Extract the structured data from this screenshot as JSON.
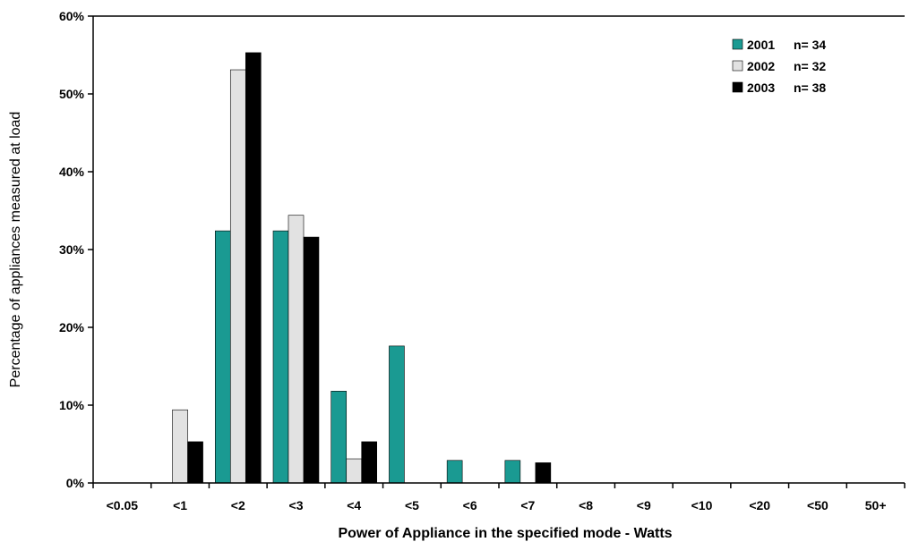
{
  "chart_data": {
    "type": "bar",
    "categories": [
      "<0.05",
      "<1",
      "<2",
      "<3",
      "<4",
      "<5",
      "<6",
      "<7",
      "<8",
      "<9",
      "<10",
      "<20",
      "<50",
      "50+"
    ],
    "series": [
      {
        "name": "2001",
        "n_label": "n= 34",
        "color": "#1a9a92",
        "values": [
          0,
          0,
          32.4,
          32.4,
          11.8,
          17.6,
          2.9,
          2.9,
          0,
          0,
          0,
          0,
          0,
          0
        ]
      },
      {
        "name": "2002",
        "n_label": "n= 32",
        "color": "#e2e2e2",
        "values": [
          0,
          9.4,
          53.1,
          34.4,
          3.1,
          0,
          0,
          0,
          0,
          0,
          0,
          0,
          0,
          0
        ]
      },
      {
        "name": "2003",
        "n_label": "n= 38",
        "color": "#000000",
        "values": [
          0,
          5.3,
          55.3,
          31.6,
          5.3,
          0,
          0,
          2.6,
          0,
          0,
          0,
          0,
          0,
          0
        ]
      }
    ],
    "xlabel": "Power of Appliance in the specified mode - Watts",
    "ylabel": "Percentage of appliances measured at load",
    "ylim": [
      0,
      60
    ],
    "yticks": [
      "0%",
      "10%",
      "20%",
      "30%",
      "40%",
      "50%",
      "60%"
    ],
    "grid": false,
    "legend_position": "top-right"
  }
}
